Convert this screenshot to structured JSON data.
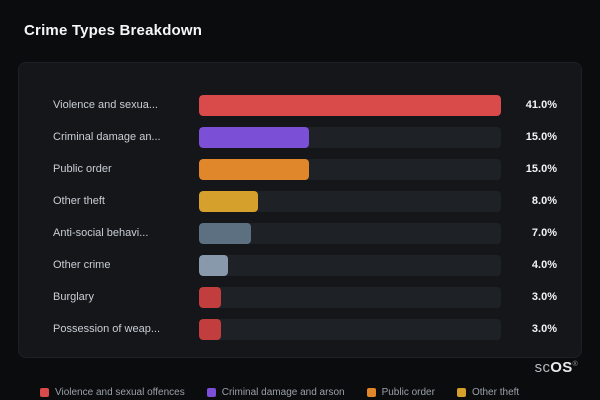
{
  "page_title": "Crime Types Breakdown",
  "chart_data": {
    "type": "bar",
    "orientation": "horizontal",
    "title": "Crime Types Breakdown",
    "max_value": 41.0,
    "grid": false,
    "legend_position": "bottom",
    "categories": [
      "Violence and sexua...",
      "Criminal damage an...",
      "Public order",
      "Other theft",
      "Anti-social behavi...",
      "Other crime",
      "Burglary",
      "Possession of weap..."
    ],
    "values": [
      41.0,
      15.0,
      15.0,
      8.0,
      7.0,
      4.0,
      3.0,
      3.0
    ],
    "value_labels": [
      "41.0%",
      "15.0%",
      "15.0%",
      "8.0%",
      "7.0%",
      "4.0%",
      "3.0%",
      "3.0%"
    ],
    "bar_colors": [
      "#d94a4a",
      "#7b4fd6",
      "#e0862b",
      "#d5a02b",
      "#5d7082",
      "#8799ab",
      "#c23e3e",
      "#c23e3e"
    ]
  },
  "legend": [
    {
      "label": "Violence and sexual offences",
      "color": "#d94a4a"
    },
    {
      "label": "Criminal damage and arson",
      "color": "#7b4fd6"
    },
    {
      "label": "Public order",
      "color": "#e0862b"
    },
    {
      "label": "Other theft",
      "color": "#d5a02b"
    }
  ],
  "branding": {
    "logo_prefix": "sc",
    "logo_suffix": "OS",
    "registered_mark": "®"
  }
}
